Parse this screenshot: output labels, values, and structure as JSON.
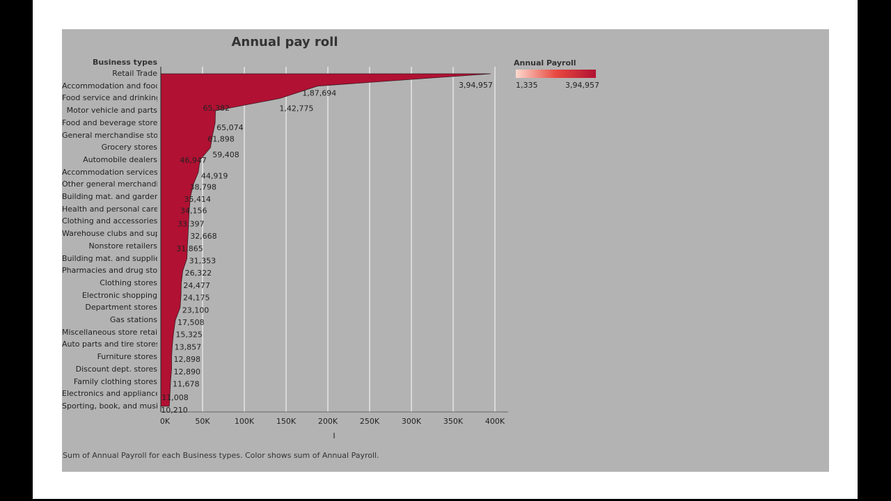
{
  "chart_data": {
    "type": "area",
    "title": "Annual pay roll",
    "orientation": "horizontal",
    "category_axis_title": "Business types",
    "x_axis_title": "I",
    "xlim": [
      0,
      410000
    ],
    "x_ticks": [
      0,
      50000,
      100000,
      150000,
      200000,
      250000,
      300000,
      350000,
      400000
    ],
    "x_tick_labels": [
      "0K",
      "50K",
      "100K",
      "150K",
      "200K",
      "250K",
      "300K",
      "350K",
      "400K"
    ],
    "grid": true,
    "color": "#b11133",
    "categories": [
      "Retail Trade",
      "Accommodation and food ..",
      "Food service and drinking ..",
      "Motor vehicle and parts",
      "Food and beverage stores",
      "General merchandise stor..",
      "Grocery stores",
      "Automobile dealers",
      "Accommodation services",
      "Other general merchandis..",
      "Building mat. and garden ..",
      "Health and personal care ..",
      "Clothing and accessories s..",
      "Warehouse clubs and sup..",
      "Nonstore retailers",
      "Building mat. and supplie..",
      "Pharmacies and drug stor..",
      "Clothing stores",
      "Electronic shopping",
      "Department stores",
      "Gas stations",
      "Miscellaneous store retail..",
      "Auto parts and tire stores",
      "Furniture stores",
      "Discount dept. stores",
      "Family clothing stores",
      "Electronics and appliance ..",
      "Sporting, book, and music.."
    ],
    "values": [
      394957,
      187694,
      142775,
      65382,
      65074,
      61898,
      59408,
      46947,
      44919,
      38798,
      35414,
      34156,
      33397,
      32668,
      31865,
      31353,
      26322,
      24477,
      24175,
      23100,
      17508,
      15325,
      13857,
      12898,
      12890,
      11678,
      11008,
      10210
    ],
    "value_labels": [
      "3,94,957",
      "1,87,694",
      "1,42,775",
      "65,382",
      "65,074",
      "61,898",
      "59,408",
      "46,947",
      "44,919",
      "38,798",
      "35,414",
      "34,156",
      "33,397",
      "32,668",
      "31,865",
      "31,353",
      "26,322",
      "24,477",
      "24,175",
      "23,100",
      "17,508",
      "15,325",
      "13,857",
      "12,898",
      "12,890",
      "11,678",
      "11,008",
      "10,210"
    ],
    "legend": {
      "title": "Annual Payroll",
      "min_label": "1,335",
      "max_label": "3,94,957",
      "min_color": "#fcd9cf",
      "max_color": "#b11133",
      "placement": "top-right"
    }
  },
  "caption": "Sum of Annual Payroll for each Business types.  Color shows sum of Annual Payroll."
}
